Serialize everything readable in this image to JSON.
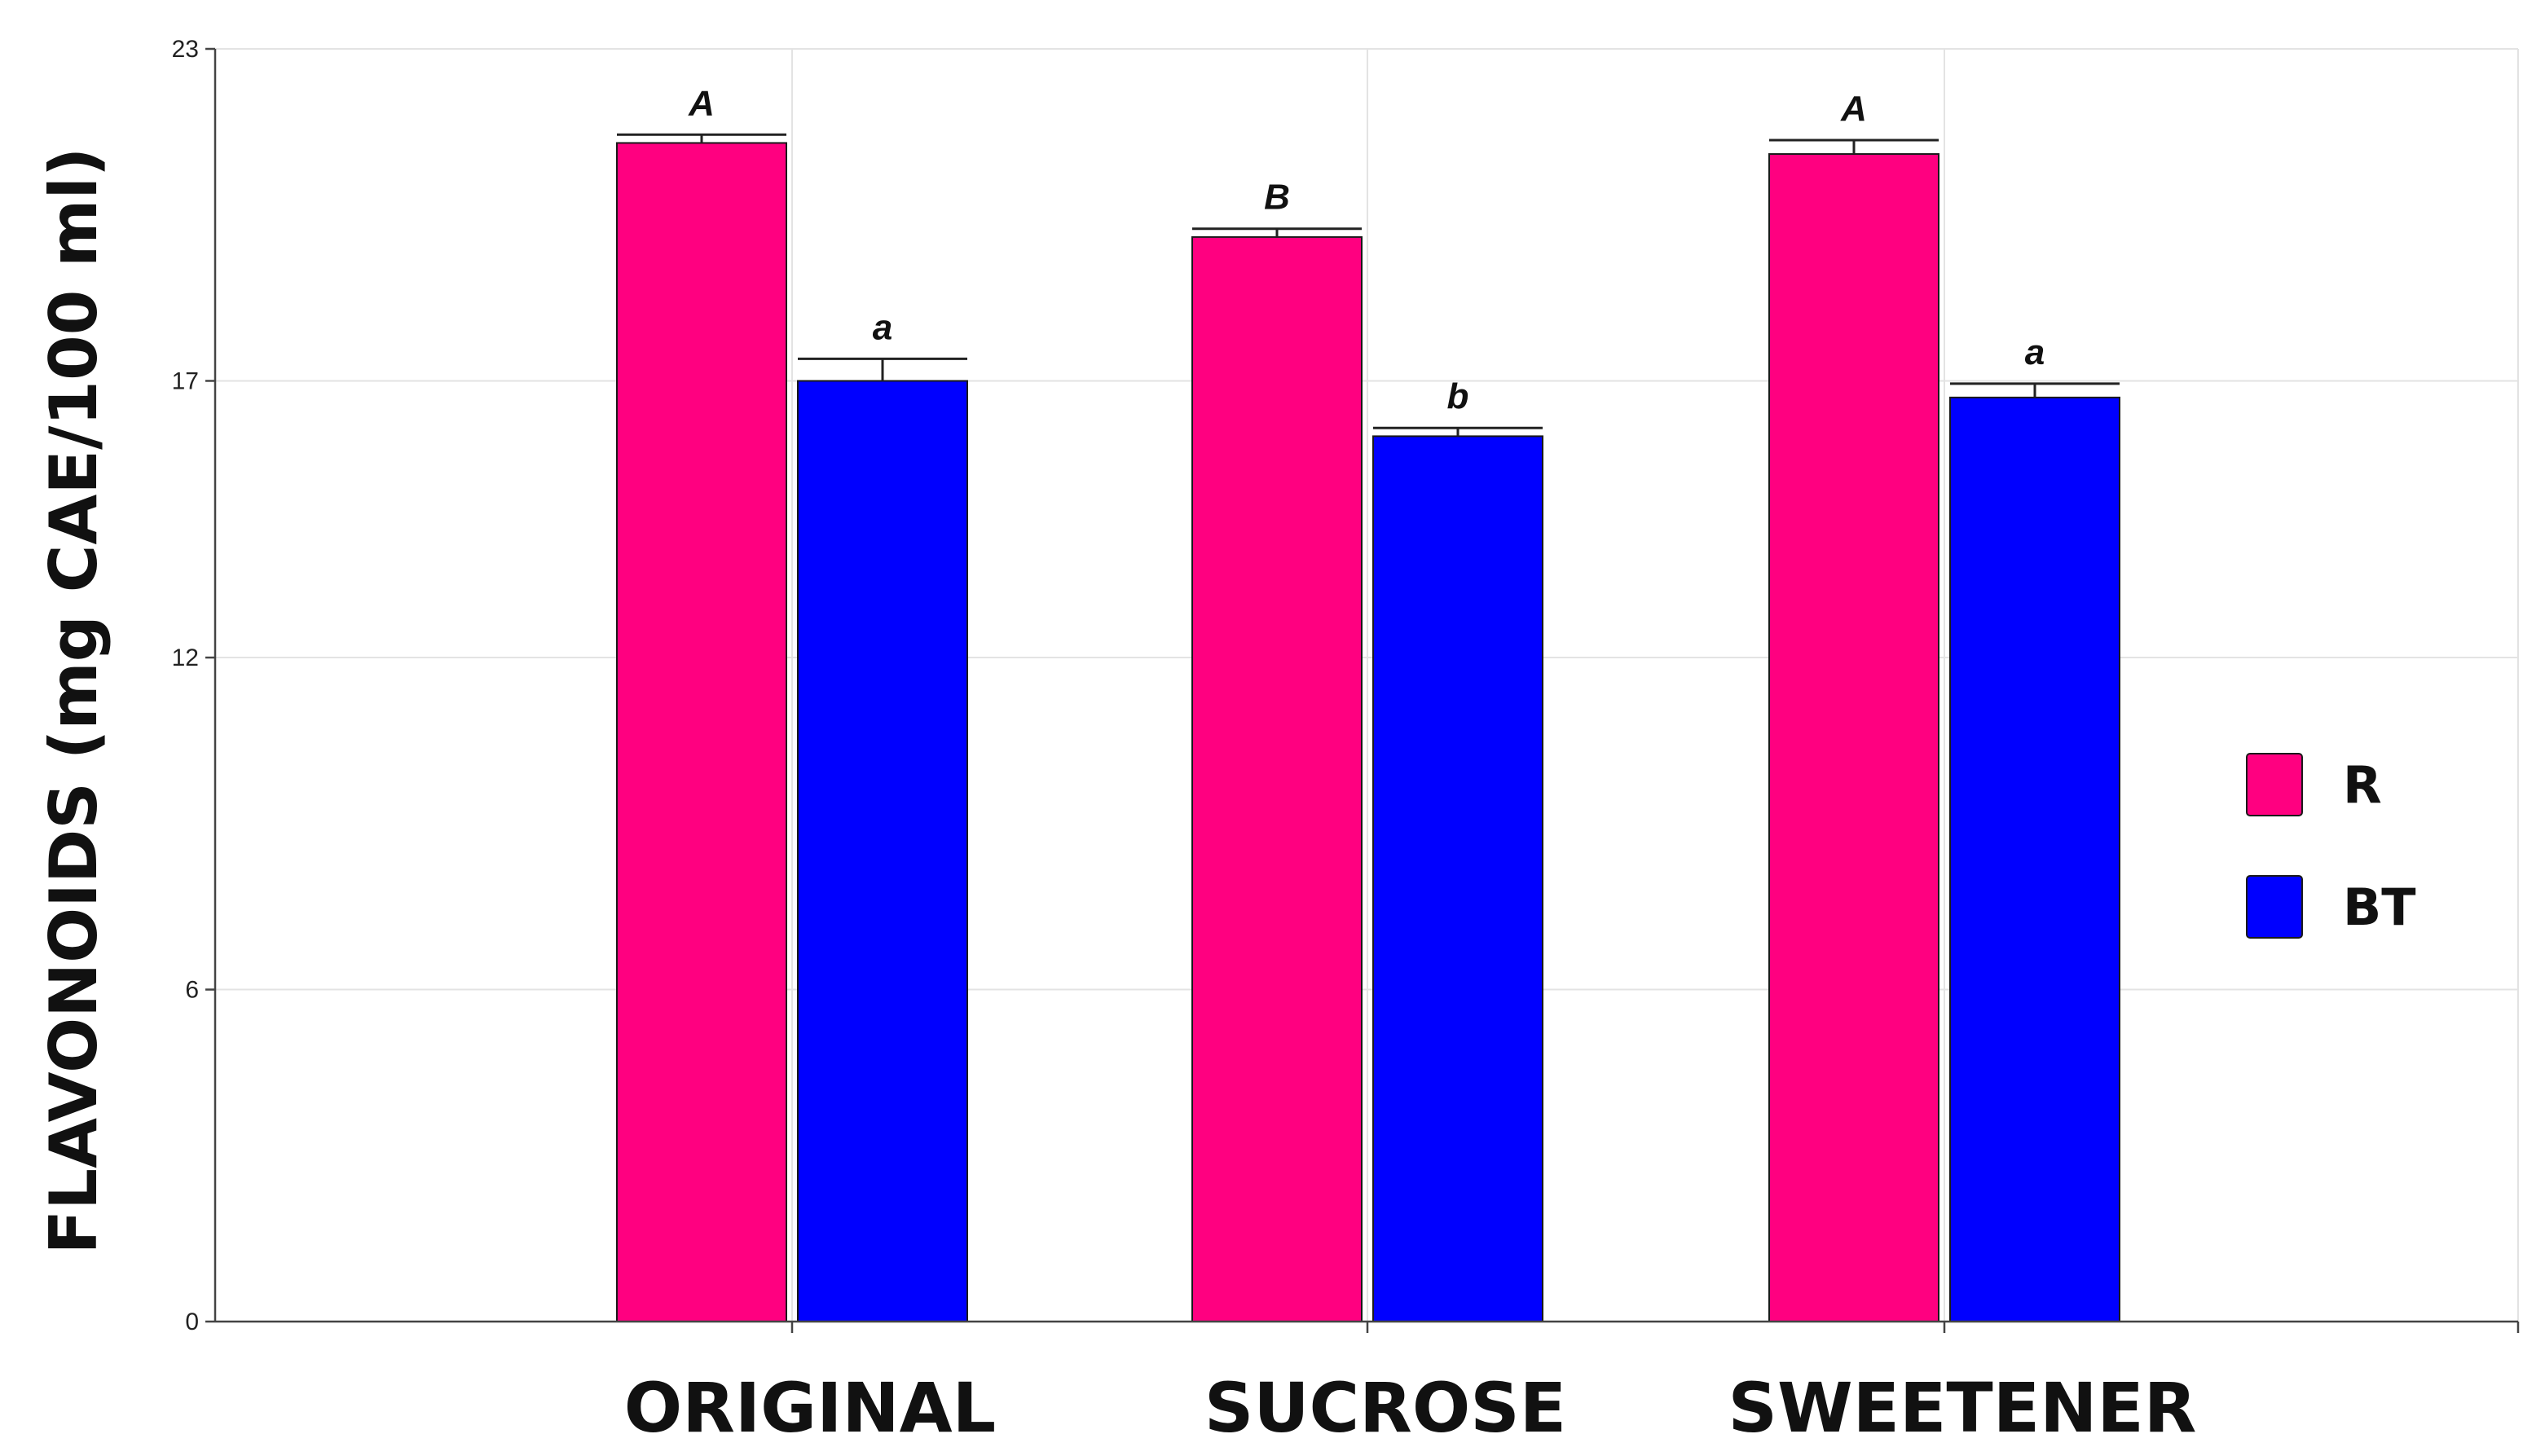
{
  "chart_data": {
    "type": "bar",
    "title": "",
    "xlabel": "",
    "ylabel": "FLAVONOIDS (mg CAE/100 ml)",
    "ylim": [
      0,
      23
    ],
    "yticks": [
      0,
      6,
      12,
      17,
      23
    ],
    "grid": true,
    "legend_position": "right",
    "categories": [
      "ORIGINAL",
      "SUCROSE",
      "SWEETENER"
    ],
    "series": [
      {
        "name": "R",
        "color": "#ff0080",
        "values": [
          21.3,
          19.6,
          21.1
        ],
        "errors": [
          0.15,
          0.15,
          0.25
        ],
        "labels": [
          "A",
          "B",
          "A"
        ]
      },
      {
        "name": "BT",
        "color": "#0000ff",
        "values": [
          17.0,
          16.0,
          16.7
        ],
        "errors": [
          0.4,
          0.15,
          0.25
        ],
        "labels": [
          "a",
          "b",
          "a"
        ]
      }
    ]
  }
}
